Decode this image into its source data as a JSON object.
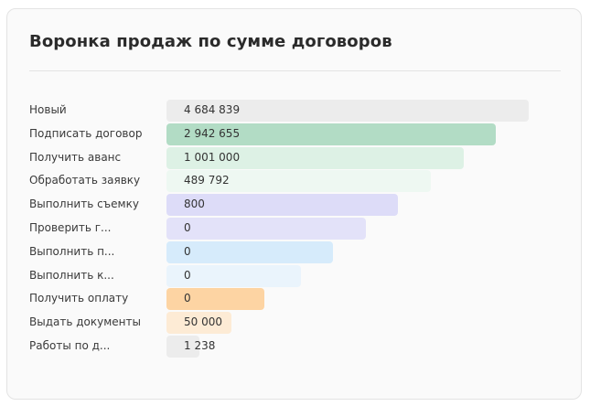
{
  "widget": {
    "title": "Воронка продаж по сумме договоров"
  },
  "funnel": {
    "stages": [
      {
        "label": "Новый",
        "value": "4 684 839",
        "fill": 1.0,
        "color": "#ececec"
      },
      {
        "label": "Подписать договор",
        "value": "2 942 655",
        "fill": 0.91,
        "color": "#b2dcc5"
      },
      {
        "label": "Получить аванс",
        "value": "1 001 000",
        "fill": 0.82,
        "color": "#ddf1e5"
      },
      {
        "label": "Обработать заявку",
        "value": "489 792",
        "fill": 0.73,
        "color": "#eef8f2"
      },
      {
        "label": "Выполнить съемку",
        "value": "800",
        "fill": 0.64,
        "color": "#dddcf8"
      },
      {
        "label": "Проверить г...",
        "value": "0",
        "fill": 0.55,
        "color": "#e3e2f9"
      },
      {
        "label": "Выполнить п...",
        "value": "0",
        "fill": 0.46,
        "color": "#d6ebfb"
      },
      {
        "label": "Выполнить к...",
        "value": "0",
        "fill": 0.37,
        "color": "#eaf4fc"
      },
      {
        "label": "Получить оплату",
        "value": "0",
        "fill": 0.27,
        "color": "#fdd4a3"
      },
      {
        "label": "Выдать документы",
        "value": "50 000",
        "fill": 0.18,
        "color": "#fdebd5"
      },
      {
        "label": "Работы по д...",
        "value": "1 238",
        "fill": 0.09,
        "color": "#ececec"
      }
    ]
  }
}
